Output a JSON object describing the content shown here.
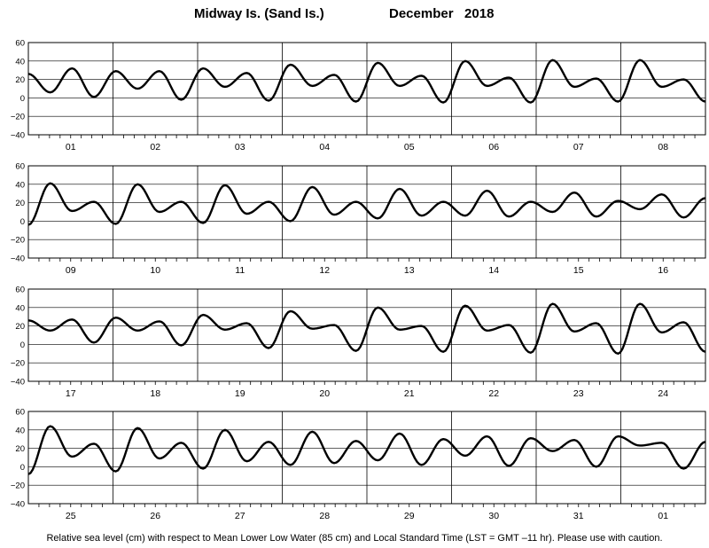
{
  "header": {
    "station": "Midway Is. (Sand Is.)",
    "period": "December   2018"
  },
  "footer": {
    "note": "Relative sea level (cm) with respect to Mean Lower Low Water (85 cm) and Local Standard Time (LST = GMT –11 hr). Please use with caution."
  },
  "chart_data": [
    {
      "type": "line",
      "ylim": [
        -40,
        60
      ],
      "yticks": [
        "60",
        "40",
        "20",
        "0",
        "−20",
        "−40"
      ],
      "day_labels": [
        "01",
        "02",
        "03",
        "04",
        "05",
        "06",
        "07",
        "08"
      ],
      "grid": true,
      "series": [
        {
          "values": [
            26,
            6,
            32,
            1,
            29,
            10,
            29,
            -2,
            32,
            12,
            27,
            -3,
            36,
            13,
            25,
            -4,
            38,
            13,
            24,
            -5,
            40,
            13,
            22,
            -5,
            41,
            12,
            21,
            -4,
            41,
            12,
            20,
            -4
          ]
        }
      ]
    },
    {
      "type": "line",
      "ylim": [
        -40,
        60
      ],
      "yticks": [
        "60",
        "40",
        "20",
        "0",
        "−20",
        "−40"
      ],
      "day_labels": [
        "09",
        "10",
        "11",
        "12",
        "13",
        "14",
        "15",
        "16"
      ],
      "grid": true,
      "series": [
        {
          "values": [
            -4,
            41,
            11,
            21,
            -3,
            40,
            10,
            21,
            -2,
            39,
            8,
            21,
            0,
            37,
            7,
            21,
            3,
            35,
            6,
            21,
            6,
            33,
            5,
            21,
            10,
            31,
            5,
            22,
            13,
            29,
            4,
            25
          ]
        }
      ]
    },
    {
      "type": "line",
      "ylim": [
        -40,
        60
      ],
      "yticks": [
        "60",
        "40",
        "20",
        "0",
        "−20",
        "−40"
      ],
      "day_labels": [
        "17",
        "18",
        "19",
        "20",
        "21",
        "22",
        "23",
        "24"
      ],
      "grid": true,
      "series": [
        {
          "values": [
            26,
            15,
            27,
            2,
            29,
            15,
            25,
            -1,
            32,
            16,
            23,
            -4,
            36,
            17,
            21,
            -7,
            40,
            16,
            20,
            -8,
            42,
            15,
            21,
            -9,
            44,
            14,
            23,
            -10,
            44,
            13,
            24,
            -8
          ]
        }
      ]
    },
    {
      "type": "line",
      "ylim": [
        -40,
        60
      ],
      "yticks": [
        "60",
        "40",
        "20",
        "0",
        "−20",
        "−40"
      ],
      "day_labels": [
        "25",
        "26",
        "27",
        "28",
        "29",
        "30",
        "31",
        "01"
      ],
      "grid": true,
      "series": [
        {
          "values": [
            -8,
            44,
            11,
            25,
            -5,
            42,
            9,
            26,
            -2,
            40,
            6,
            27,
            2,
            38,
            4,
            28,
            7,
            36,
            2,
            30,
            12,
            33,
            1,
            31,
            17,
            29,
            0,
            33,
            23,
            26,
            -2,
            27
          ]
        }
      ]
    }
  ]
}
